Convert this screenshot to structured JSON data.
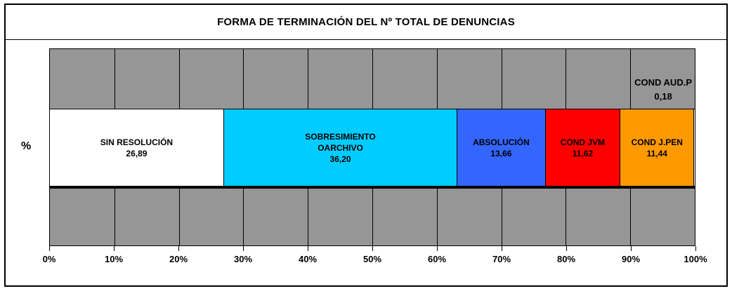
{
  "chart": {
    "title": "FORMA DE TERMINACIÓN DEL Nº TOTAL DE DENUNCIAS",
    "y_axis_label": "%"
  },
  "chart_data": {
    "type": "bar",
    "subtype": "horizontal-stacked-100pct",
    "title": "FORMA DE TERMINACIÓN DEL Nº TOTAL DE DENUNCIAS",
    "ylabel": "%",
    "xlabel": "",
    "x_range": [
      0,
      100
    ],
    "x_ticks": [
      "0%",
      "10%",
      "20%",
      "30%",
      "40%",
      "50%",
      "60%",
      "70%",
      "80%",
      "90%",
      "100%"
    ],
    "grid": true,
    "plot_background": "#969696",
    "gridline_color": "#000000",
    "segments": [
      {
        "name_lines": [
          "SIN RESOLUCIÓN"
        ],
        "value": 26.89,
        "value_label": "26,89",
        "color": "#FFFFFF",
        "label_position": "inside"
      },
      {
        "name_lines": [
          "SOBRESIMIENTO",
          "OARCHIVO"
        ],
        "value": 36.2,
        "value_label": "36,20",
        "color": "#00CCFF",
        "label_position": "inside"
      },
      {
        "name_lines": [
          "ABSOLUCIÓN"
        ],
        "value": 13.66,
        "value_label": "13,66",
        "color": "#3366FF",
        "label_position": "inside"
      },
      {
        "name_lines": [
          "COND JVM"
        ],
        "value": 11.62,
        "value_label": "11,62",
        "color": "#FF0000",
        "label_position": "inside"
      },
      {
        "name_lines": [
          "COND J.PEN"
        ],
        "value": 11.44,
        "value_label": "11,44",
        "color": "#FF9900",
        "label_position": "inside"
      },
      {
        "name_lines": [
          "COND AUD.P"
        ],
        "value": 0.18,
        "value_label": "0,18",
        "color": "#FFFFFF",
        "label_position": "outside-top-right"
      }
    ]
  }
}
